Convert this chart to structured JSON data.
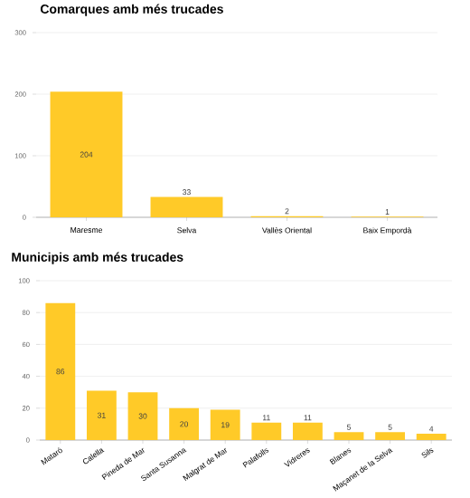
{
  "chart_data": [
    {
      "type": "bar",
      "title": "Comarques amb més trucades",
      "categories": [
        "Maresme",
        "Selva",
        "Vallès Oriental",
        "Baix Empordà"
      ],
      "values": [
        204,
        33,
        2,
        1
      ],
      "color": "#ffca28",
      "ylim": [
        0,
        300
      ],
      "yticks": [
        0,
        100,
        200,
        300
      ],
      "grid": "y",
      "data_labels": true
    },
    {
      "type": "bar",
      "title": "Municipis amb més trucades",
      "categories": [
        "Mataró",
        "Calella",
        "Pineda de Mar",
        "Santa Susanna",
        "Malgrat de Mar",
        "Palafolls",
        "Vidreres",
        "Blanes",
        "Maçanet de la Selva",
        "Sils"
      ],
      "values": [
        86,
        31,
        30,
        20,
        19,
        11,
        11,
        5,
        5,
        4
      ],
      "color": "#ffca28",
      "ylim": [
        0,
        100
      ],
      "yticks": [
        0,
        20,
        40,
        60,
        80,
        100
      ],
      "grid": "y",
      "data_labels": true
    }
  ]
}
